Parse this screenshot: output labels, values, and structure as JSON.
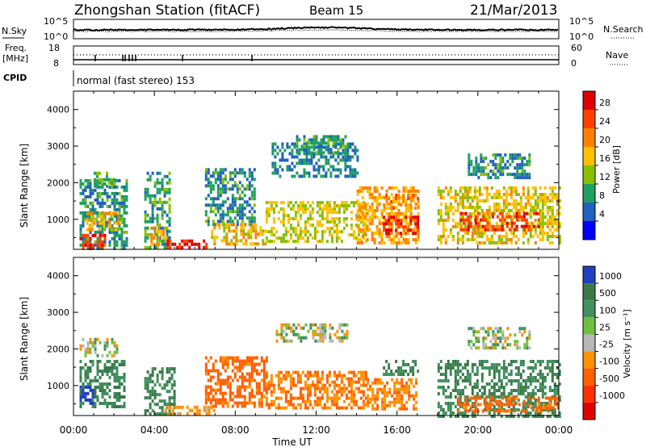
{
  "header": {
    "station": "Zhongshan Station (fitACF)",
    "beam": "Beam 15",
    "date": "21/Mar/2013"
  },
  "top_strip": {
    "left_label": "N.Sky",
    "right_label": "N.Search",
    "left_ticks": [
      "10^5",
      "10^0"
    ],
    "right_ticks": [
      "10^5",
      "10^0"
    ]
  },
  "freq_strip": {
    "left_label_1": "Freq.",
    "left_label_2": "[MHz]",
    "right_label": "Nave",
    "left_ticks": [
      "18",
      "8"
    ],
    "right_ticks": [
      "60",
      "0"
    ]
  },
  "cpid": {
    "label": "CPID",
    "mode": "normal (fast stereo) 153"
  },
  "x_axis": {
    "label": "Time UT",
    "ticks": [
      "00:00",
      "04:00",
      "08:00",
      "12:00",
      "16:00",
      "20:00",
      "00:00"
    ]
  },
  "power_scale": {
    "title": "Power [dB]",
    "labels": [
      "28",
      "24",
      "20",
      "16",
      "12",
      "8",
      "4"
    ],
    "colors": [
      "#e00000",
      "#ff4000",
      "#ff8000",
      "#ffc000",
      "#88c000",
      "#20a060",
      "#2060c0",
      "#0000ff"
    ]
  },
  "velocity_scale": {
    "title": "Velocity [m s⁻¹]",
    "labels": [
      "1000",
      "500",
      "100",
      "25",
      "-25",
      "-100",
      "-500",
      "-1000"
    ],
    "colors": [
      "#2040c0",
      "#3a7a48",
      "#409060",
      "#70c040",
      "#b8b8b8",
      "#ff9000",
      "#ff6000",
      "#ff3000",
      "#e00000"
    ]
  },
  "chart_data": [
    {
      "type": "heatmap",
      "title": "",
      "xlabel": "",
      "ylabel": "Slant Range [km]",
      "x_range_hours": [
        0,
        24
      ],
      "ylim": [
        180,
        4500
      ],
      "yticks": [
        1000,
        2000,
        3000,
        4000
      ],
      "zlabel": "Power [dB]",
      "zlim": [
        0,
        32
      ],
      "blobs": [
        {
          "t0": 0.3,
          "t1": 2.6,
          "r0": 200,
          "r1": 2100,
          "z": 9
        },
        {
          "t0": 0.3,
          "t1": 1.6,
          "r0": 200,
          "r1": 600,
          "z": 27
        },
        {
          "t0": 0.5,
          "t1": 2.2,
          "r0": 700,
          "r1": 1200,
          "z": 18
        },
        {
          "t0": 1.0,
          "t1": 2.0,
          "r0": 1900,
          "r1": 2300,
          "z": 13
        },
        {
          "t0": 3.5,
          "t1": 4.8,
          "r0": 200,
          "r1": 2300,
          "z": 10
        },
        {
          "t0": 3.8,
          "t1": 4.6,
          "r0": 300,
          "r1": 800,
          "z": 20
        },
        {
          "t0": 4.6,
          "t1": 6.6,
          "r0": 200,
          "r1": 450,
          "z": 29
        },
        {
          "t0": 6.5,
          "t1": 9.0,
          "r0": 900,
          "r1": 2400,
          "z": 9
        },
        {
          "t0": 6.8,
          "t1": 9.5,
          "r0": 350,
          "r1": 900,
          "z": 18
        },
        {
          "t0": 9.5,
          "t1": 14.5,
          "r0": 400,
          "r1": 1500,
          "z": 16
        },
        {
          "t0": 9.8,
          "t1": 14.0,
          "r0": 2200,
          "r1": 3100,
          "z": 8
        },
        {
          "t0": 11.0,
          "t1": 13.5,
          "r0": 2800,
          "r1": 3300,
          "z": 10
        },
        {
          "t0": 14.0,
          "t1": 17.0,
          "r0": 400,
          "r1": 1900,
          "z": 20
        },
        {
          "t0": 15.3,
          "t1": 17.0,
          "r0": 600,
          "r1": 1100,
          "z": 29
        },
        {
          "t0": 15.3,
          "t1": 17.0,
          "r0": 1300,
          "r1": 1700,
          "z": 22
        },
        {
          "t0": 18.0,
          "t1": 24.0,
          "r0": 400,
          "r1": 1900,
          "z": 17
        },
        {
          "t0": 19.0,
          "t1": 23.0,
          "r0": 700,
          "r1": 1200,
          "z": 27
        },
        {
          "t0": 19.5,
          "t1": 22.5,
          "r0": 2100,
          "r1": 2800,
          "z": 9
        }
      ]
    },
    {
      "type": "heatmap",
      "title": "",
      "xlabel": "Time UT",
      "ylabel": "Slant Range [km]",
      "x_range_hours": [
        0,
        24
      ],
      "ylim": [
        180,
        4500
      ],
      "yticks": [
        1000,
        2000,
        3000,
        4000
      ],
      "zlabel": "Velocity [m s⁻¹]",
      "zlim": [
        -1000,
        1000
      ],
      "blobs": [
        {
          "t0": 0.3,
          "t1": 2.5,
          "r0": 400,
          "r1": 1700,
          "z": 300
        },
        {
          "t0": 0.3,
          "t1": 1.0,
          "r0": 500,
          "r1": 1000,
          "z": 900
        },
        {
          "t0": 0.3,
          "t1": 2.2,
          "r0": 1800,
          "r1": 2300,
          "z": 0
        },
        {
          "t0": 3.5,
          "t1": 5.0,
          "r0": 250,
          "r1": 1500,
          "z": 300
        },
        {
          "t0": 4.5,
          "t1": 7.0,
          "r0": 200,
          "r1": 450,
          "z": -150
        },
        {
          "t0": 6.5,
          "t1": 9.5,
          "r0": 400,
          "r1": 1800,
          "z": -400
        },
        {
          "t0": 9.5,
          "t1": 14.5,
          "r0": 400,
          "r1": 1400,
          "z": -300
        },
        {
          "t0": 10.0,
          "t1": 13.5,
          "r0": 2200,
          "r1": 2700,
          "z": 0
        },
        {
          "t0": 14.5,
          "t1": 17.0,
          "r0": 400,
          "r1": 1200,
          "z": -250
        },
        {
          "t0": 15.3,
          "t1": 17.0,
          "r0": 1300,
          "r1": 1700,
          "z": 300
        },
        {
          "t0": 18.0,
          "t1": 24.0,
          "r0": 200,
          "r1": 1700,
          "z": 300
        },
        {
          "t0": 19.0,
          "t1": 24.0,
          "r0": 300,
          "r1": 700,
          "z": -400
        },
        {
          "t0": 19.5,
          "t1": 22.5,
          "r0": 2000,
          "r1": 2600,
          "z": 0
        }
      ]
    }
  ]
}
